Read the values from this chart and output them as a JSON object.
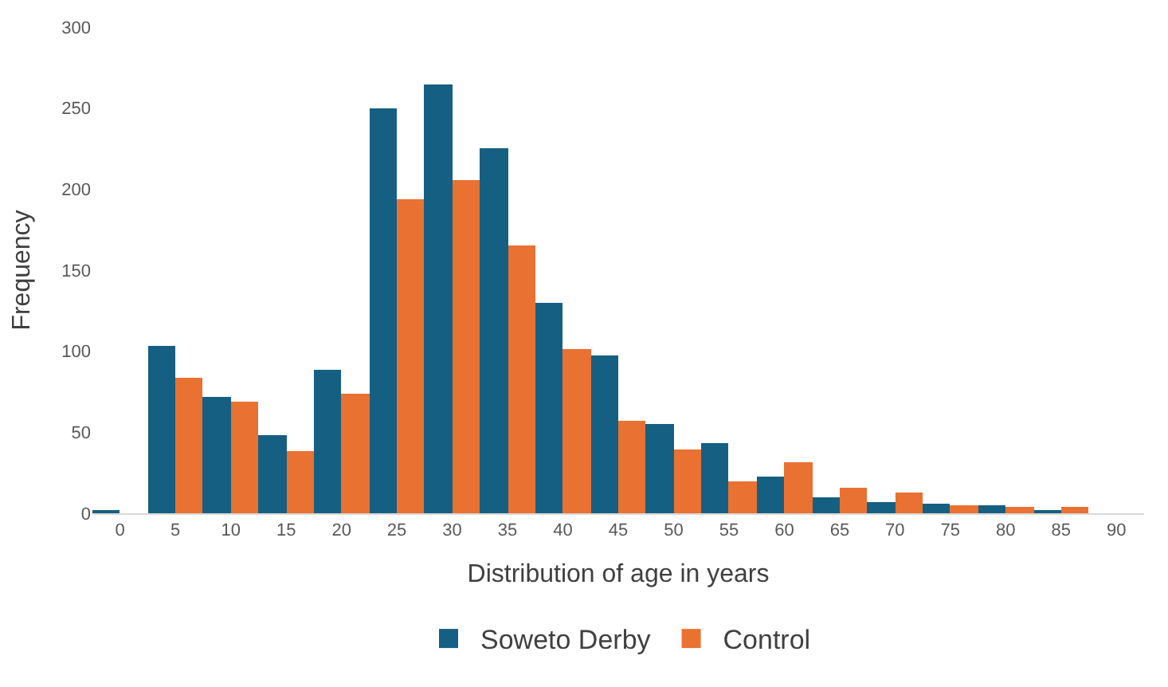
{
  "chart_data": {
    "type": "bar",
    "xlabel": "Distribution of age in years",
    "ylabel": "Frequency",
    "categories": [
      "0",
      "5",
      "10",
      "15",
      "20",
      "25",
      "30",
      "35",
      "40",
      "45",
      "50",
      "55",
      "60",
      "65",
      "70",
      "75",
      "80",
      "85",
      "90"
    ],
    "series": [
      {
        "name": "Soweto Derby",
        "color": "#156082",
        "values": [
          2,
          103,
          72,
          48,
          89,
          250,
          265,
          225,
          130,
          97,
          55,
          43,
          23,
          10,
          7,
          6,
          5,
          2,
          0
        ]
      },
      {
        "name": "Control",
        "color": "#e97132",
        "values": [
          0,
          84,
          69,
          38,
          74,
          194,
          206,
          165,
          101,
          57,
          39,
          20,
          31,
          16,
          13,
          5,
          4,
          4,
          0
        ]
      }
    ],
    "ylim": [
      0,
      300
    ],
    "yticks": [
      0,
      50,
      100,
      150,
      200,
      250,
      300
    ],
    "legend": "bottom"
  }
}
